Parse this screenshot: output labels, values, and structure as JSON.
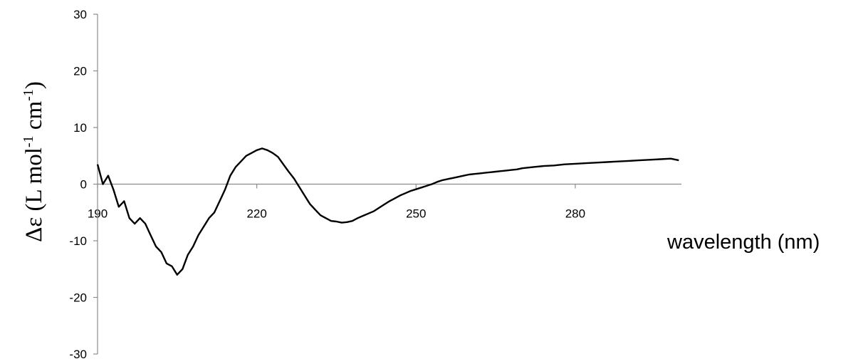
{
  "chart_data": {
    "type": "line",
    "title": "",
    "ylabel": "Δε (L mol-1 cm-1)",
    "ylabel_parts": {
      "main": "Δε (L mol",
      "sup1": "-1",
      "mid": " cm",
      "sup2": "-1",
      "end": ")"
    },
    "xlabel": "wavelength (nm)",
    "xlim": [
      190,
      300
    ],
    "ylim": [
      -30,
      30
    ],
    "x_ticks": [
      190,
      220,
      250,
      280
    ],
    "y_ticks": [
      -30,
      -20,
      -10,
      0,
      10,
      20,
      30
    ],
    "x_tick_labels": [
      "190",
      "220",
      "250",
      "280"
    ],
    "y_tick_labels": [
      "-30",
      "-20",
      "-10",
      "0",
      "10",
      "20",
      "30"
    ],
    "grid": false,
    "legend": "none",
    "series": [
      {
        "color": "#000000",
        "x": [
          190,
          191,
          192,
          193,
          194,
          195,
          196,
          197,
          198,
          199,
          200,
          201,
          202,
          203,
          204,
          205,
          206,
          207,
          208,
          209,
          210,
          211,
          212,
          213,
          214,
          215,
          216,
          217,
          218,
          219,
          220,
          221,
          222,
          223,
          224,
          225,
          226,
          227,
          228,
          229,
          230,
          231,
          232,
          233,
          234,
          235,
          236,
          237,
          238,
          239,
          240,
          241,
          242,
          243,
          244,
          245,
          246,
          247,
          248,
          249,
          250,
          251,
          252,
          253,
          254,
          255,
          256,
          257,
          258,
          259,
          260,
          261,
          262,
          263,
          264,
          265,
          266,
          267,
          268,
          269,
          270,
          272,
          274,
          276,
          278,
          280,
          282,
          284,
          286,
          288,
          290,
          292,
          294,
          296,
          298,
          299.5
        ],
        "y": [
          3.5,
          0,
          1.5,
          -1,
          -4,
          -3,
          -6,
          -7,
          -6,
          -7,
          -9,
          -11,
          -12,
          -14,
          -14.5,
          -16,
          -15,
          -12.5,
          -11,
          -9,
          -7.5,
          -6,
          -5,
          -3,
          -1,
          1.5,
          3,
          4,
          5,
          5.5,
          6,
          6.3,
          6,
          5.5,
          4.8,
          3.5,
          2.2,
          1,
          -0.5,
          -2,
          -3.5,
          -4.5,
          -5.5,
          -6,
          -6.5,
          -6.6,
          -6.8,
          -6.7,
          -6.5,
          -6,
          -5.6,
          -5.2,
          -4.8,
          -4.2,
          -3.6,
          -3.0,
          -2.5,
          -2.0,
          -1.6,
          -1.2,
          -0.9,
          -0.6,
          -0.3,
          0.0,
          0.4,
          0.7,
          0.9,
          1.1,
          1.3,
          1.5,
          1.7,
          1.8,
          1.9,
          2.0,
          2.1,
          2.2,
          2.3,
          2.4,
          2.5,
          2.6,
          2.8,
          3.0,
          3.2,
          3.3,
          3.5,
          3.6,
          3.7,
          3.8,
          3.9,
          4.0,
          4.1,
          4.2,
          4.3,
          4.4,
          4.5,
          4.2
        ]
      }
    ]
  }
}
